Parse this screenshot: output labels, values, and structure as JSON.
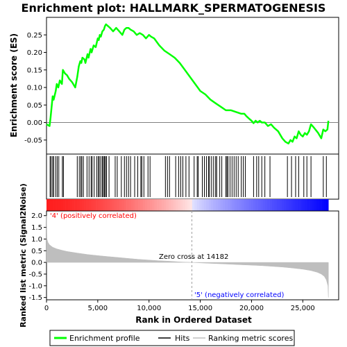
{
  "chart_data": {
    "type": "line",
    "title": "Enrichment plot: HALLMARK_SPERMATOGENESIS",
    "xlabel": "Rank in Ordered Dataset",
    "x_range": [
      0,
      28500
    ],
    "x_ticks": [
      0,
      5000,
      10000,
      15000,
      20000,
      25000
    ],
    "x_tick_labels": [
      "0",
      "5,000",
      "10,000",
      "15,000",
      "20,000",
      "25,000"
    ],
    "panels": {
      "es": {
        "ylabel": "Enrichment score (ES)",
        "ylim": [
          -0.09,
          0.3
        ],
        "y_ticks": [
          -0.05,
          0.0,
          0.05,
          0.1,
          0.15,
          0.2,
          0.25
        ],
        "y_tick_labels": [
          "-0.05",
          "0.00",
          "0.05",
          "0.10",
          "0.15",
          "0.20",
          "0.25"
        ]
      },
      "metric": {
        "ylabel": "Ranked list metric (Signal2Noise)",
        "ylim": [
          -1.6,
          2.2
        ],
        "y_ticks": [
          -1.5,
          -1.0,
          -0.5,
          0.0,
          0.5,
          1.0,
          1.5,
          2.0
        ],
        "y_tick_labels": [
          "-1.5",
          "-1.0",
          "-0.5",
          "0.0",
          "0.5",
          "1.0",
          "1.5",
          "2.0"
        ]
      }
    },
    "series": [
      {
        "name": "Enrichment profile",
        "color": "#00ff00",
        "x": [
          0,
          300,
          400,
          500,
          600,
          700,
          900,
          1000,
          1150,
          1300,
          1500,
          1600,
          1800,
          2000,
          2200,
          2500,
          2800,
          3000,
          3150,
          3300,
          3400,
          3500,
          3700,
          3800,
          4000,
          4100,
          4300,
          4400,
          4600,
          4800,
          5000,
          5100,
          5200,
          5300,
          5450,
          5600,
          5700,
          5800,
          6000,
          6200,
          6500,
          6800,
          7100,
          7400,
          7600,
          7800,
          8000,
          8200,
          8500,
          8800,
          9100,
          9400,
          9700,
          10000,
          10200,
          10500,
          11000,
          11500,
          12000,
          12500,
          13000,
          13500,
          14000,
          14500,
          15000,
          15500,
          16000,
          16500,
          17000,
          17500,
          18000,
          18500,
          19000,
          19300,
          19500,
          19800,
          20000,
          20200,
          20400,
          20600,
          20800,
          21000,
          21300,
          21600,
          21900,
          22200,
          22600,
          23000,
          23300,
          23600,
          23800,
          24000,
          24200,
          24400,
          24600,
          24800,
          25000,
          25200,
          25400,
          25600,
          25800,
          26100,
          26500,
          26800,
          27000,
          27200,
          27400,
          27500
        ],
        "y": [
          -0.005,
          -0.01,
          0.015,
          0.045,
          0.075,
          0.065,
          0.09,
          0.11,
          0.1,
          0.12,
          0.11,
          0.15,
          0.14,
          0.135,
          0.125,
          0.115,
          0.1,
          0.13,
          0.16,
          0.175,
          0.17,
          0.185,
          0.18,
          0.17,
          0.195,
          0.185,
          0.21,
          0.2,
          0.22,
          0.215,
          0.24,
          0.235,
          0.25,
          0.245,
          0.26,
          0.265,
          0.275,
          0.28,
          0.275,
          0.27,
          0.26,
          0.27,
          0.26,
          0.25,
          0.265,
          0.27,
          0.27,
          0.265,
          0.26,
          0.25,
          0.255,
          0.25,
          0.24,
          0.25,
          0.245,
          0.24,
          0.22,
          0.205,
          0.195,
          0.185,
          0.17,
          0.15,
          0.13,
          0.11,
          0.09,
          0.08,
          0.065,
          0.055,
          0.045,
          0.035,
          0.035,
          0.03,
          0.025,
          0.025,
          0.018,
          0.01,
          0.005,
          -0.002,
          0.005,
          0.0,
          0.005,
          0.0,
          0.0,
          -0.01,
          -0.005,
          -0.015,
          -0.025,
          -0.045,
          -0.055,
          -0.06,
          -0.05,
          -0.055,
          -0.04,
          -0.045,
          -0.025,
          -0.035,
          -0.04,
          -0.03,
          -0.035,
          -0.025,
          -0.005,
          -0.015,
          -0.03,
          -0.045,
          -0.02,
          -0.025,
          -0.02,
          0.005
        ]
      },
      {
        "name": "Hits",
        "color": "#000000",
        "x": [
          350,
          450,
          600,
          700,
          900,
          1050,
          1200,
          1550,
          1650,
          3000,
          3200,
          3350,
          3450,
          3600,
          3950,
          4150,
          4350,
          4450,
          4650,
          4900,
          5050,
          5150,
          5300,
          5450,
          5550,
          5650,
          5750,
          5850,
          6100,
          6700,
          6900,
          7300,
          7600,
          7800,
          8000,
          8200,
          8600,
          8900,
          9200,
          9300,
          9500,
          9900,
          10100,
          11600,
          11800,
          12000,
          12600,
          12900,
          13100,
          13300,
          13600,
          13900,
          14400,
          14700,
          14800,
          15200,
          15400,
          15600,
          15800,
          15900,
          16100,
          16300,
          16500,
          16600,
          16900,
          17100,
          17500,
          17600,
          17700,
          17900,
          18100,
          18300,
          18500,
          18700,
          19000,
          19200,
          19400,
          20200,
          20500,
          20700,
          21000,
          21300,
          21800,
          23500,
          23900,
          24300,
          24600,
          25100,
          25400,
          25800,
          27000,
          27300
        ]
      },
      {
        "name": "Ranking metric scores",
        "color": "#bebebe",
        "x": [
          0,
          50,
          150,
          300,
          600,
          1000,
          1500,
          2000,
          3000,
          4000,
          5000,
          6000,
          7000,
          8000,
          9000,
          10000,
          11000,
          12000,
          13000,
          14182,
          15000,
          16000,
          17000,
          18000,
          19000,
          20000,
          21000,
          22000,
          23000,
          24000,
          25000,
          25800,
          26400,
          26800,
          27100,
          27300,
          27450,
          27500
        ],
        "y": [
          2.0,
          1.0,
          0.85,
          0.75,
          0.65,
          0.58,
          0.52,
          0.47,
          0.4,
          0.34,
          0.29,
          0.25,
          0.21,
          0.17,
          0.13,
          0.1,
          0.07,
          0.05,
          0.02,
          0.0,
          -0.02,
          -0.04,
          -0.06,
          -0.08,
          -0.1,
          -0.12,
          -0.14,
          -0.17,
          -0.2,
          -0.24,
          -0.29,
          -0.35,
          -0.42,
          -0.5,
          -0.6,
          -0.75,
          -1.0,
          -1.5
        ]
      }
    ],
    "zero_cross_rank": 14182,
    "annotations": {
      "zero_cross": "Zero cross at 14182",
      "positive": "'4' (positively correlated)",
      "negative": "'5' (negatively correlated)"
    },
    "legend": {
      "placement": "bottom",
      "items": [
        "Enrichment profile",
        "Hits",
        "Ranking metric scores"
      ]
    },
    "colors": {
      "enrichment": "#00ff00",
      "hits": "#000000",
      "metric_fill": "#bebebe",
      "positive_label": "#ff0000",
      "negative_label": "#0000ff",
      "heat_positive": "#ff0000",
      "heat_negative": "#0000ff"
    }
  }
}
